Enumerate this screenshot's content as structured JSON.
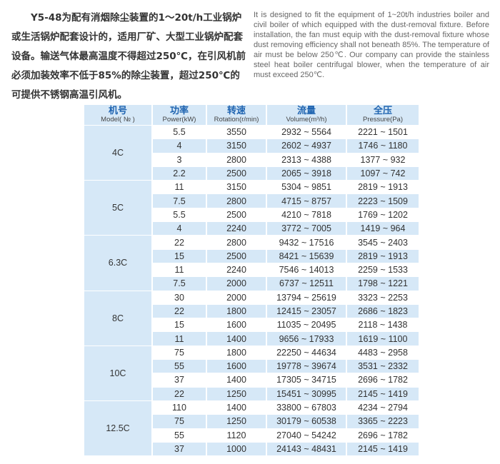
{
  "intro_cn": [
    "Y5-48为配有消烟除尘装置的1～20t/h工业锅炉或生活锅炉配套设计的，适用厂矿、大型工业锅炉配套设备。输送气体最高温度不得超过250℃，在引风机前必须加装效率不低于85%的除尘装置，超过250℃的可提供不锈钢高温引风机。"
  ],
  "intro_en": "It is designed to fit the equipment of 1~20t/h industries boiler and civil boiler of which equipped with the dust-removal fixture. Before installation, the fan must equip with the dust-removal fixture whose dust removing efficiency shall not beneath 85%. The temperature of air must be below 250℃. Our company can provide the stainless steel heat boiler centrifugal blower, when the temperature of air must exceed 250℃.",
  "table": {
    "headers": [
      {
        "cn": "机号",
        "en": "Model( № )"
      },
      {
        "cn": "功率",
        "en": "Power(kW)"
      },
      {
        "cn": "转速",
        "en": "Rotation(r/min)"
      },
      {
        "cn": "流量",
        "en": "Volume(m³/h)"
      },
      {
        "cn": "全压",
        "en": "Pressure(Pa)"
      }
    ],
    "groups": [
      {
        "model": "4C",
        "rows": [
          [
            "5.5",
            "3550",
            "2932 ~ 5564",
            "2221 ~ 1501"
          ],
          [
            "4",
            "3150",
            "2602 ~ 4937",
            "1746 ~ 1180"
          ],
          [
            "3",
            "2800",
            "2313 ~ 4388",
            "1377 ~ 932"
          ],
          [
            "2.2",
            "2500",
            "2065 ~ 3918",
            "1097 ~ 742"
          ]
        ]
      },
      {
        "model": "5C",
        "rows": [
          [
            "11",
            "3150",
            "5304 ~ 9851",
            "2819 ~ 1913"
          ],
          [
            "7.5",
            "2800",
            "4715 ~ 8757",
            "2223 ~ 1509"
          ],
          [
            "5.5",
            "2500",
            "4210 ~ 7818",
            "1769 ~ 1202"
          ],
          [
            "4",
            "2240",
            "3772 ~ 7005",
            "1419 ~ 964"
          ]
        ]
      },
      {
        "model": "6.3C",
        "rows": [
          [
            "22",
            "2800",
            "9432 ~ 17516",
            "3545 ~ 2403"
          ],
          [
            "15",
            "2500",
            "8421 ~ 15639",
            "2819 ~ 1913"
          ],
          [
            "11",
            "2240",
            "7546 ~ 14013",
            "2259 ~ 1533"
          ],
          [
            "7.5",
            "2000",
            "6737 ~ 12511",
            "1798 ~ 1221"
          ]
        ]
      },
      {
        "model": "8C",
        "rows": [
          [
            "30",
            "2000",
            "13794 ~ 25619",
            "3323 ~ 2253"
          ],
          [
            "22",
            "1800",
            "12415 ~ 23057",
            "2686 ~ 1823"
          ],
          [
            "15",
            "1600",
            "11035 ~ 20495",
            "2118 ~ 1438"
          ],
          [
            "11",
            "1400",
            "9656 ~ 17933",
            "1619 ~ 1100"
          ]
        ]
      },
      {
        "model": "10C",
        "rows": [
          [
            "75",
            "1800",
            "22250 ~ 44634",
            "4483 ~ 2958"
          ],
          [
            "55",
            "1600",
            "19778 ~ 39674",
            "3531 ~ 2332"
          ],
          [
            "37",
            "1400",
            "17305 ~ 34715",
            "2696 ~ 1782"
          ],
          [
            "22",
            "1250",
            "15451 ~ 30995",
            "2145 ~ 1419"
          ]
        ]
      },
      {
        "model": "12.5C",
        "rows": [
          [
            "110",
            "1400",
            "33800 ~ 67803",
            "4234 ~ 2794"
          ],
          [
            "75",
            "1250",
            "30179 ~ 60538",
            "3365 ~ 2223"
          ],
          [
            "55",
            "1120",
            "27040 ~ 54242",
            "2696 ~ 1782"
          ],
          [
            "37",
            "1000",
            "24143 ~ 48431",
            "2145 ~ 1419"
          ]
        ]
      }
    ]
  },
  "colors": {
    "header_bg": "#d6e8f7",
    "header_text": "#1e63b0"
  }
}
